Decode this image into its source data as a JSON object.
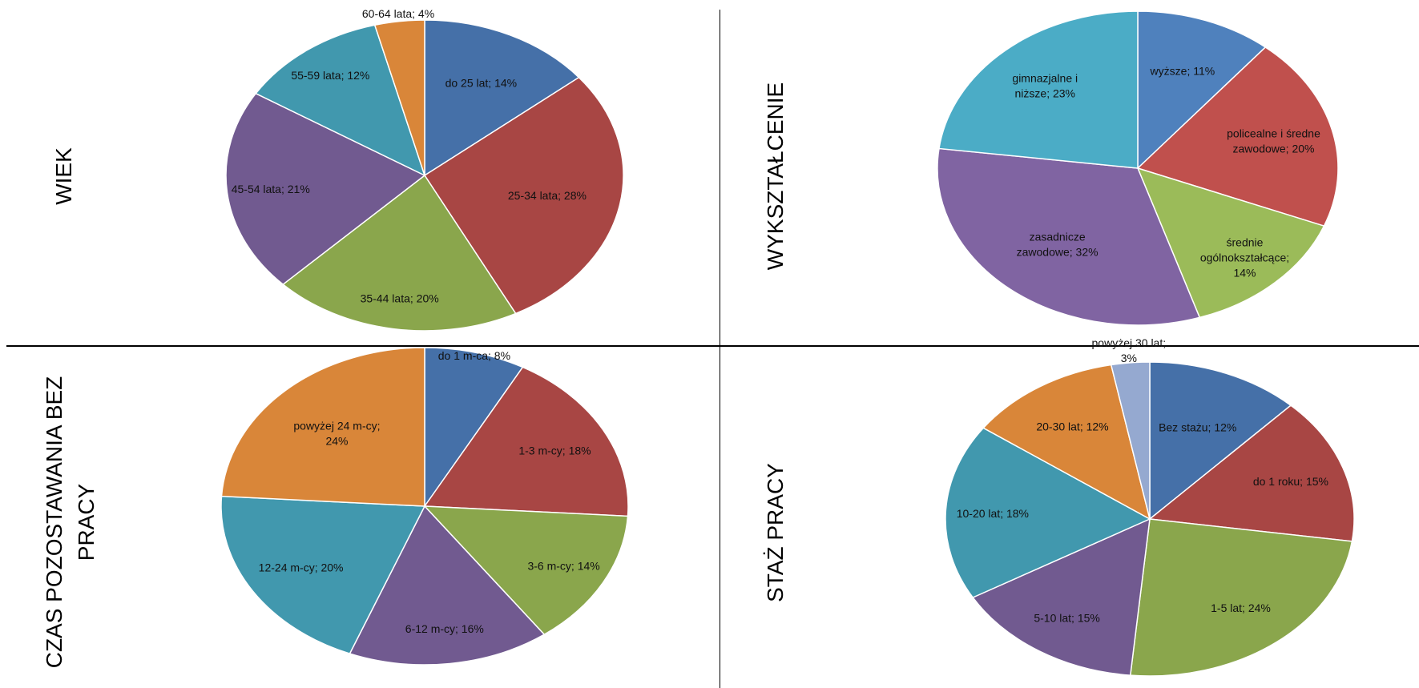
{
  "chart_data": [
    {
      "type": "pie",
      "title": "WIEK",
      "categories": [
        "do 25 lat",
        "25-34 lata",
        "35-44 lata",
        "45-54 lata",
        "55-59 lata",
        "60-64 lata"
      ],
      "values": [
        14,
        28,
        20,
        21,
        12,
        4
      ],
      "labels": [
        "do 25 lat; 14%",
        "25-34 lata; 28%",
        "35-44 lata; 20%",
        "45-54 lata; 21%",
        "55-59 lata; 12%",
        "60-64 lata; 4%"
      ],
      "colors": [
        "#4570a8",
        "#a84644",
        "#8aa64c",
        "#715a90",
        "#4198ae",
        "#d98639"
      ]
    },
    {
      "type": "pie",
      "title": "WYKSZTAŁCENIE",
      "categories": [
        "wyższe",
        "policealne i średne zawodowe",
        "średnie ogólnokształcące",
        "zasadnicze zawodowe",
        "gimnazjalne i niższe"
      ],
      "values": [
        11,
        20,
        14,
        32,
        23
      ],
      "labels": [
        "wyższe; 11%",
        "policealne i średne zawodowe; 20%",
        "średnie ogólnokształcące; 14%",
        "zasadnicze zawodowe; 32%",
        "gimnazjalne i niższe; 23%"
      ],
      "colors": [
        "#4f81bd",
        "#c0504d",
        "#9bbb59",
        "#8064a2",
        "#4bacc6"
      ]
    },
    {
      "type": "pie",
      "title": "CZAS POZOSTAWANIA BEZ PRACY",
      "categories": [
        "do 1 m-ca",
        "1-3 m-cy",
        "3-6 m-cy",
        "6-12 m-cy",
        "12-24 m-cy",
        "powyżej 24 m-cy"
      ],
      "values": [
        8,
        18,
        14,
        16,
        20,
        24
      ],
      "labels": [
        "do 1 m-ca; 8%",
        "1-3 m-cy; 18%",
        "3-6 m-cy; 14%",
        "6-12 m-cy; 16%",
        "12-24 m-cy; 20%",
        "powyżej 24 m-cy; 24%"
      ],
      "colors": [
        "#4570a8",
        "#a84644",
        "#8aa64c",
        "#715a90",
        "#4198ae",
        "#d98639"
      ]
    },
    {
      "type": "pie",
      "title": "STAŻ PRACY",
      "categories": [
        "Bez stażu",
        "do 1 roku",
        "1-5 lat",
        "5-10 lat",
        "10-20 lat",
        "20-30 lat",
        "powyżej 30 lat"
      ],
      "values": [
        12,
        15,
        24,
        15,
        18,
        12,
        3
      ],
      "labels": [
        "Bez stażu; 12%",
        "do 1 roku; 15%",
        "1-5 lat; 24%",
        "5-10 lat; 15%",
        "10-20 lat; 18%",
        "20-30 lat; 12%",
        "powyżej 30 lat; 3%"
      ],
      "colors": [
        "#4570a8",
        "#a84644",
        "#8aa64c",
        "#715a90",
        "#4198ae",
        "#d98639",
        "#95a9d0"
      ]
    }
  ]
}
